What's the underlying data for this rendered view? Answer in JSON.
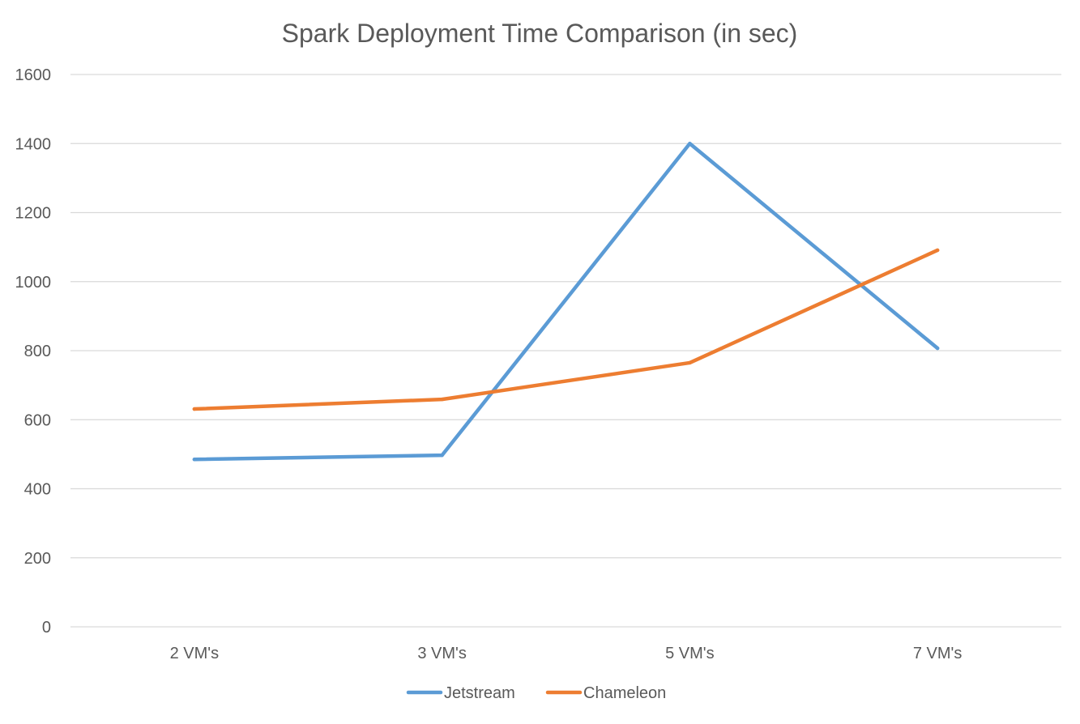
{
  "chart_data": {
    "type": "line",
    "title": "Spark Deployment Time Comparison (in sec)",
    "xlabel": "",
    "ylabel": "",
    "categories": [
      "2 VM's",
      "3 VM's",
      "5 VM's",
      "7 VM's"
    ],
    "ylim": [
      0,
      1600
    ],
    "yticks": [
      0,
      200,
      400,
      600,
      800,
      1000,
      1200,
      1400,
      1600
    ],
    "grid": true,
    "legend_position": "bottom",
    "series": [
      {
        "name": "Jetstream",
        "color": "#5B9BD5",
        "values": [
          485,
          497,
          1400,
          807
        ]
      },
      {
        "name": "Chameleon",
        "color": "#ED7D31",
        "values": [
          631,
          659,
          765,
          1091
        ]
      }
    ]
  }
}
